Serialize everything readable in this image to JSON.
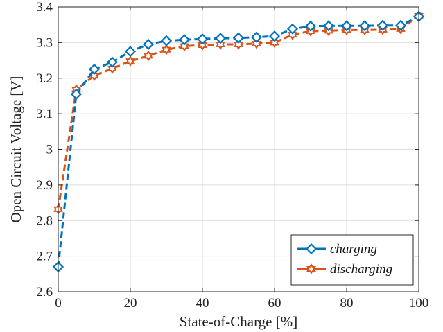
{
  "chart_data": {
    "type": "line",
    "xlabel": "State-of-Charge [%]",
    "ylabel": "Open Circuit Voltage [V]",
    "xlim": [
      0,
      100
    ],
    "ylim": [
      2.6,
      3.4
    ],
    "xticks": [
      0,
      20,
      40,
      60,
      80,
      100
    ],
    "yticks": [
      2.6,
      2.7,
      2.8,
      2.9,
      3.0,
      3.1,
      3.2,
      3.3,
      3.4
    ],
    "xtick_labels": [
      "0",
      "20",
      "40",
      "60",
      "80",
      "100"
    ],
    "ytick_labels": [
      "2.6",
      "2.7",
      "2.8",
      "2.9",
      "3",
      "3.1",
      "3.2",
      "3.3",
      "3.4"
    ],
    "grid": true,
    "legend_position": "bottom-right",
    "x": [
      0,
      5,
      10,
      15,
      20,
      25,
      30,
      35,
      40,
      45,
      50,
      55,
      60,
      65,
      70,
      75,
      80,
      85,
      90,
      95,
      100
    ],
    "series": [
      {
        "name": "charging",
        "color": "#0072BD",
        "marker": "diamond",
        "line_style": "dashed",
        "values": [
          2.67,
          3.155,
          3.225,
          3.245,
          3.275,
          3.295,
          3.305,
          3.308,
          3.31,
          3.312,
          3.313,
          3.315,
          3.318,
          3.338,
          3.346,
          3.347,
          3.347,
          3.347,
          3.348,
          3.348,
          3.373
        ]
      },
      {
        "name": "discharging",
        "color": "#D95319",
        "marker": "hexagram",
        "line_style": "dashed",
        "values": [
          2.832,
          3.168,
          3.207,
          3.227,
          3.248,
          3.263,
          3.28,
          3.29,
          3.293,
          3.295,
          3.295,
          3.297,
          3.3,
          3.322,
          3.332,
          3.333,
          3.335,
          3.335,
          3.336,
          3.338,
          3.375
        ]
      }
    ]
  }
}
